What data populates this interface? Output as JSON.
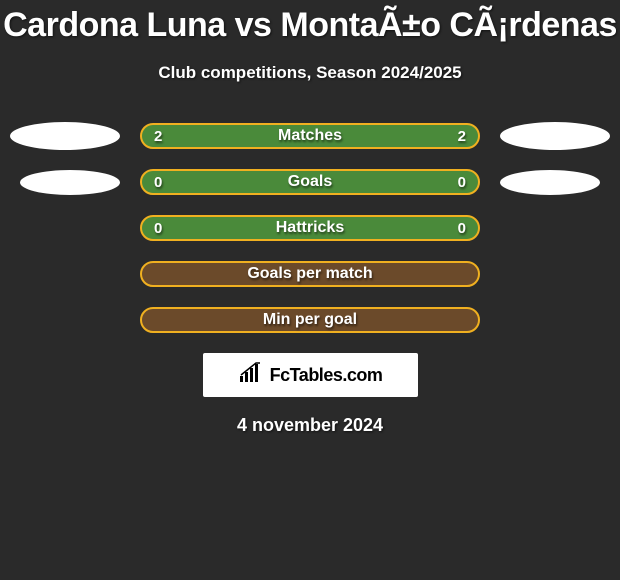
{
  "title": "Cardona Luna vs MontaÃ±o CÃ¡rdenas",
  "subtitle": "Club competitions, Season 2024/2025",
  "date": "4 november 2024",
  "colors": {
    "background": "#2a2a2a",
    "text": "#ffffff",
    "ellipse": "#ffffff",
    "bar_green_fill": "#4a8a3a",
    "bar_green_border": "#f0b020",
    "bar_brown_fill": "#6b4a2a",
    "bar_brown_border": "#f0b020",
    "logo_bg": "#ffffff",
    "logo_text": "#000000"
  },
  "rows": [
    {
      "label": "Matches",
      "left_value": "2",
      "right_value": "2",
      "fill": "#4a8a3a",
      "border": "#f0b020",
      "show_left_ellipse": true,
      "show_right_ellipse": true,
      "ellipse_small": false
    },
    {
      "label": "Goals",
      "left_value": "0",
      "right_value": "0",
      "fill": "#4a8a3a",
      "border": "#f0b020",
      "show_left_ellipse": true,
      "show_right_ellipse": true,
      "ellipse_small": true
    },
    {
      "label": "Hattricks",
      "left_value": "0",
      "right_value": "0",
      "fill": "#4a8a3a",
      "border": "#f0b020",
      "show_left_ellipse": false,
      "show_right_ellipse": false
    },
    {
      "label": "Goals per match",
      "left_value": "",
      "right_value": "",
      "fill": "#6b4a2a",
      "border": "#f0b020",
      "show_left_ellipse": false,
      "show_right_ellipse": false
    },
    {
      "label": "Min per goal",
      "left_value": "",
      "right_value": "",
      "fill": "#6b4a2a",
      "border": "#f0b020",
      "show_left_ellipse": false,
      "show_right_ellipse": false
    }
  ],
  "logo": {
    "text": "FcTables.com"
  }
}
